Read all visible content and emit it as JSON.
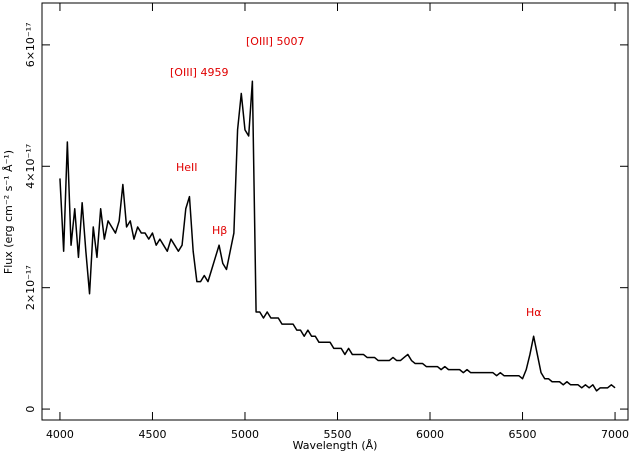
{
  "chart_data": {
    "type": "line",
    "xlabel": "Wavelength (Å)",
    "ylabel": "Flux (erg cm⁻² s⁻¹ Å⁻¹)",
    "annotations": [
      "[OIII] 5007",
      "[OIII] 4959",
      "HeII",
      "Hβ",
      "Hα"
    ],
    "xlim": [
      3903,
      7070
    ],
    "ylim": [
      -1.8e-18,
      6.69e-17
    ],
    "xticks": [
      4000,
      4500,
      5000,
      5500,
      6000,
      6500,
      7000
    ],
    "yticks": [
      0,
      {
        "value": 2e-17,
        "label": "2×10⁻¹⁷"
      },
      {
        "value": 4e-17,
        "label": "4×10⁻¹⁷"
      },
      {
        "value": 6e-17,
        "label": "6×10⁻¹⁷"
      }
    ],
    "x": [
      4000,
      4020,
      4040,
      4060,
      4080,
      4100,
      4120,
      4140,
      4160,
      4180,
      4200,
      4220,
      4240,
      4260,
      4280,
      4300,
      4320,
      4340,
      4360,
      4380,
      4400,
      4420,
      4440,
      4460,
      4480,
      4500,
      4520,
      4540,
      4560,
      4580,
      4600,
      4620,
      4640,
      4660,
      4680,
      4700,
      4720,
      4740,
      4760,
      4780,
      4800,
      4820,
      4840,
      4860,
      4880,
      4900,
      4920,
      4940,
      4960,
      4980,
      5000,
      5020,
      5040,
      5060,
      5080,
      5100,
      5120,
      5140,
      5160,
      5180,
      5200,
      5220,
      5240,
      5260,
      5280,
      5300,
      5320,
      5340,
      5360,
      5380,
      5400,
      5420,
      5440,
      5460,
      5480,
      5500,
      5520,
      5540,
      5560,
      5580,
      5600,
      5620,
      5640,
      5660,
      5680,
      5700,
      5720,
      5740,
      5760,
      5780,
      5800,
      5820,
      5840,
      5860,
      5880,
      5900,
      5920,
      5940,
      5960,
      5980,
      6000,
      6020,
      6040,
      6060,
      6080,
      6100,
      6120,
      6140,
      6160,
      6180,
      6200,
      6220,
      6240,
      6260,
      6280,
      6300,
      6320,
      6340,
      6360,
      6380,
      6400,
      6420,
      6440,
      6460,
      6480,
      6500,
      6520,
      6540,
      6560,
      6580,
      6600,
      6620,
      6640,
      6660,
      6680,
      6700,
      6720,
      6740,
      6760,
      6780,
      6800,
      6820,
      6840,
      6860,
      6880,
      6900,
      6920,
      6940,
      6960,
      6980,
      7000
    ],
    "series": [
      {
        "color": "#000000",
        "values": [
          3.8e-17,
          2.6e-17,
          4.4e-17,
          2.7e-17,
          3.3e-17,
          2.5e-17,
          3.4e-17,
          2.6e-17,
          1.9e-17,
          3e-17,
          2.5e-17,
          3.3e-17,
          2.8e-17,
          3.1e-17,
          3e-17,
          2.9e-17,
          3.1e-17,
          3.7e-17,
          3e-17,
          3.1e-17,
          2.8e-17,
          3e-17,
          2.9e-17,
          2.9e-17,
          2.8e-17,
          2.9e-17,
          2.7e-17,
          2.8e-17,
          2.7e-17,
          2.6e-17,
          2.8e-17,
          2.7e-17,
          2.6e-17,
          2.7e-17,
          3.3e-17,
          3.5e-17,
          2.6e-17,
          2.1e-17,
          2.1e-17,
          2.2e-17,
          2.1e-17,
          2.3e-17,
          2.5e-17,
          2.7e-17,
          2.4e-17,
          2.3e-17,
          2.6e-17,
          2.9e-17,
          4.6e-17,
          5.2e-17,
          4.6e-17,
          4.5e-17,
          5.4e-17,
          1.6e-17,
          1.6e-17,
          1.5e-17,
          1.6e-17,
          1.5e-17,
          1.5e-17,
          1.5e-17,
          1.4e-17,
          1.4e-17,
          1.4e-17,
          1.4e-17,
          1.3e-17,
          1.3e-17,
          1.2e-17,
          1.3e-17,
          1.2e-17,
          1.2e-17,
          1.1e-17,
          1.1e-17,
          1.1e-17,
          1.1e-17,
          1e-17,
          1e-17,
          1e-17,
          9e-18,
          1e-17,
          9e-18,
          9e-18,
          9e-18,
          9e-18,
          8.5e-18,
          8.5e-18,
          8.5e-18,
          8e-18,
          8e-18,
          8e-18,
          8e-18,
          8.5e-18,
          8e-18,
          8e-18,
          8.5e-18,
          9e-18,
          8e-18,
          7.5e-18,
          7.5e-18,
          7.5e-18,
          7e-18,
          7e-18,
          7e-18,
          7e-18,
          6.5e-18,
          7e-18,
          6.5e-18,
          6.5e-18,
          6.5e-18,
          6.5e-18,
          6e-18,
          6.5e-18,
          6e-18,
          6e-18,
          6e-18,
          6e-18,
          6e-18,
          6e-18,
          6e-18,
          5.5e-18,
          6e-18,
          5.5e-18,
          5.5e-18,
          5.5e-18,
          5.5e-18,
          5.5e-18,
          5e-18,
          6.5e-18,
          9e-18,
          1.2e-17,
          9e-18,
          6e-18,
          5e-18,
          5e-18,
          4.5e-18,
          4.5e-18,
          4.5e-18,
          4e-18,
          4.5e-18,
          4e-18,
          4e-18,
          4e-18,
          3.5e-18,
          4e-18,
          3.5e-18,
          4e-18,
          3e-18,
          3.5e-18,
          3.5e-18,
          3.5e-18,
          4e-18,
          3.5e-18
        ]
      }
    ]
  }
}
